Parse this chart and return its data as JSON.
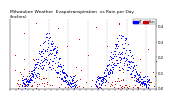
{
  "title": "Milwaukee Weather  Evapotranspiration  vs Rain per Day",
  "title2": "(Inches)",
  "et_color": "#0000FF",
  "rain_color": "#CC0000",
  "legend_et": "ET",
  "legend_rain": "Rain",
  "background": "#FFFFFF",
  "ylim": [
    0,
    0.45
  ],
  "title_fontsize": 3.2,
  "tick_fontsize": 2.8,
  "marker_size": 0.5,
  "vline_color": "#888888",
  "num_years": 2,
  "days_per_year": 365
}
